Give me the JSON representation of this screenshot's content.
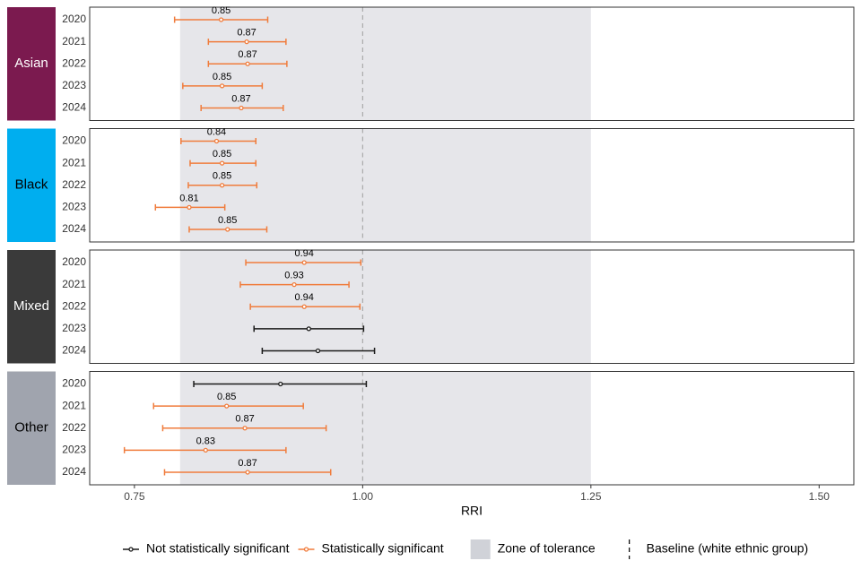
{
  "chart_data": {
    "type": "forest",
    "x_label": "RRI",
    "xlim": [
      0.701,
      1.538
    ],
    "xticks": [
      {
        "value": 0.75,
        "label": "0.75"
      },
      {
        "value": 1,
        "label": "1.00"
      },
      {
        "value": 1.25,
        "label": "1.25"
      },
      {
        "value": 1.5,
        "label": "1.50"
      }
    ],
    "categories": [
      "2020",
      "2021",
      "2022",
      "2023",
      "2024"
    ],
    "series": [
      {
        "name": "Not statistically significant",
        "color": "#1a1a1a"
      },
      {
        "name": "Statistically significant",
        "color": "#f07c3c"
      }
    ],
    "zone": {
      "name": "Zone of tolerance",
      "range": [
        0.8,
        1.25
      ],
      "color": "#e6e6ea",
      "legend_color": "#d0d2d8"
    },
    "baseline": {
      "name": "Baseline (white ethnic group)",
      "value": 1,
      "color": "#aaaaaa"
    },
    "groups": [
      {
        "name": "Asian",
        "color": "#7b1a4f",
        "label_color": "#ffffff",
        "values": [
          0.845,
          0.873,
          0.874,
          0.846,
          0.867
        ],
        "lower": [
          0.794,
          0.831,
          0.831,
          0.803,
          0.823
        ],
        "upper": [
          0.896,
          0.916,
          0.917,
          0.89,
          0.913
        ],
        "significant": [
          true,
          true,
          true,
          true,
          true
        ],
        "value_labels": [
          "0.85",
          "0.87",
          "0.87",
          "0.85",
          "0.87"
        ]
      },
      {
        "name": "Black",
        "color": "#00aeef",
        "label_color": "#000000",
        "values": [
          0.84,
          0.846,
          0.846,
          0.81,
          0.852
        ],
        "lower": [
          0.801,
          0.811,
          0.809,
          0.773,
          0.81
        ],
        "upper": [
          0.883,
          0.883,
          0.884,
          0.849,
          0.895
        ],
        "significant": [
          true,
          true,
          true,
          true,
          true
        ],
        "value_labels": [
          "0.84",
          "0.85",
          "0.85",
          "0.81",
          "0.85"
        ]
      },
      {
        "name": "Mixed",
        "color": "#3a3a3a",
        "label_color": "#ffffff",
        "values": [
          0.936,
          0.925,
          0.936,
          0.941,
          0.951
        ],
        "lower": [
          0.872,
          0.866,
          0.877,
          0.881,
          0.89
        ],
        "upper": [
          0.998,
          0.985,
          0.997,
          1.001,
          1.013
        ],
        "significant": [
          true,
          true,
          true,
          false,
          false
        ],
        "value_labels": [
          "0.94",
          "0.93",
          "0.94",
          null,
          null
        ]
      },
      {
        "name": "Other",
        "color": "#a0a4ae",
        "label_color": "#000000",
        "values": [
          0.91,
          0.851,
          0.871,
          0.828,
          0.874
        ],
        "lower": [
          0.815,
          0.771,
          0.781,
          0.739,
          0.783
        ],
        "upper": [
          1.004,
          0.935,
          0.96,
          0.916,
          0.965
        ],
        "significant": [
          false,
          true,
          true,
          true,
          true
        ],
        "value_labels": [
          null,
          "0.85",
          "0.87",
          "0.83",
          "0.87"
        ]
      }
    ]
  }
}
